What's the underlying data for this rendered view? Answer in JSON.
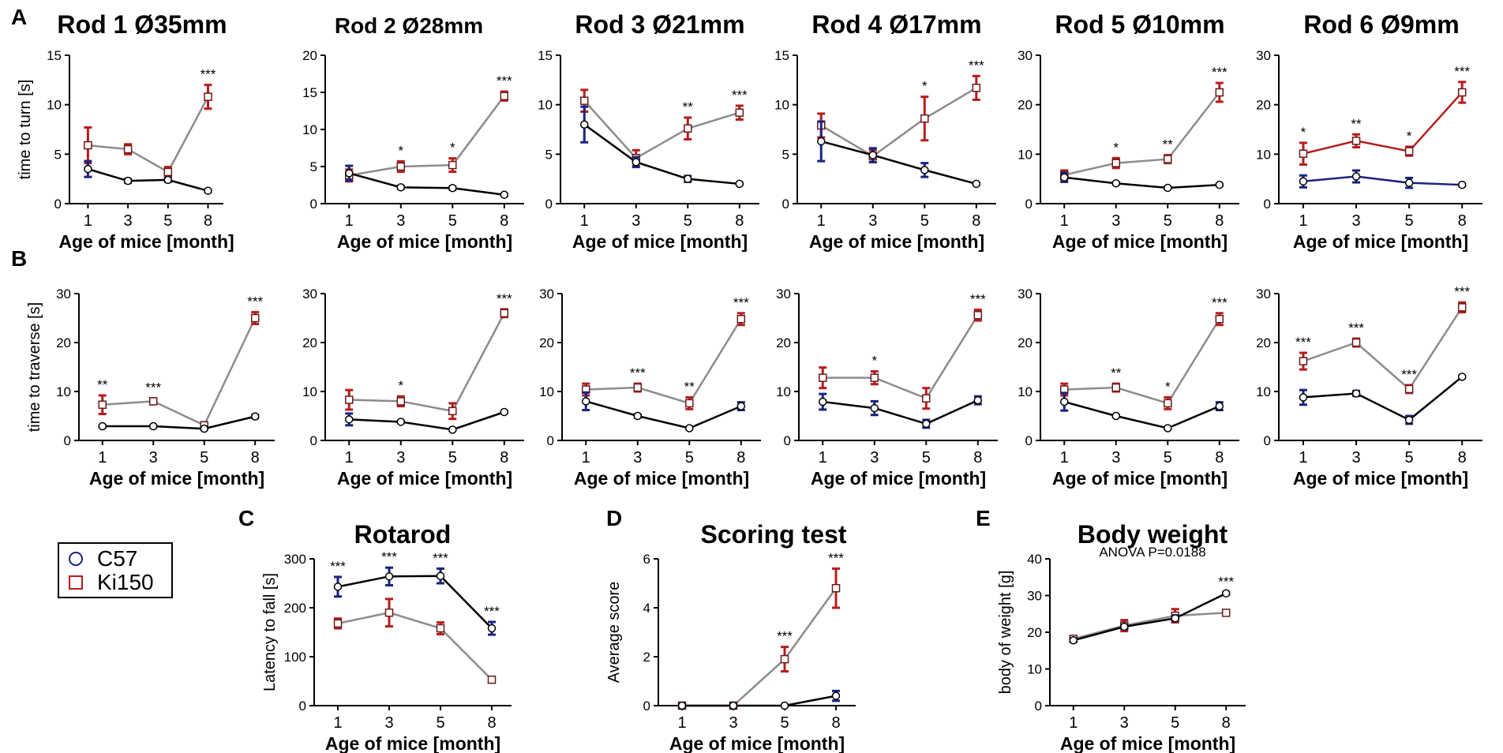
{
  "panel_labels": [
    "A",
    "B",
    "C",
    "D",
    "E"
  ],
  "legend": {
    "items": [
      {
        "label": "C57",
        "color": "#1a237e",
        "marker": "circle"
      },
      {
        "label": "Ki150",
        "color": "#b71c1c",
        "marker": "square"
      }
    ]
  },
  "colors": {
    "c57_line": "#000000",
    "ki150_line": "#8c8c8c",
    "c57_err": "#1a237e",
    "ki150_err": "#b71c1c",
    "rod6_c57_line": "#1a237e",
    "rod6_ki150_line": "#b71c1c"
  },
  "chart_data": [
    {
      "id": "A1",
      "type": "line",
      "title": "Rod 1 Ø35mm",
      "ylabel": "time to turn [s]",
      "xlabel": "Age of mice [month]",
      "categories": [
        "1",
        "3",
        "5",
        "8"
      ],
      "ylim": [
        0,
        15
      ],
      "yticks": [
        0,
        5,
        10,
        15
      ],
      "series": [
        {
          "name": "C57",
          "values": [
            3.5,
            2.3,
            2.4,
            1.3
          ],
          "errors": [
            0.8,
            0.2,
            0.2,
            0.1
          ]
        },
        {
          "name": "Ki150",
          "values": [
            5.9,
            5.5,
            3.2,
            10.8
          ],
          "errors": [
            1.8,
            0.5,
            0.5,
            1.2
          ]
        }
      ],
      "annotations": [
        "",
        "",
        "",
        "***"
      ]
    },
    {
      "id": "A2",
      "type": "line",
      "title": "Rod 2 Ø28mm",
      "ylabel": "",
      "xlabel": "Age of mice [month]",
      "categories": [
        "1",
        "3",
        "5",
        "8"
      ],
      "ylim": [
        0,
        20
      ],
      "yticks": [
        0,
        5,
        10,
        15,
        20
      ],
      "series": [
        {
          "name": "C57",
          "values": [
            4.1,
            2.2,
            2.1,
            1.2
          ],
          "errors": [
            1.0,
            0.2,
            0.2,
            0.1
          ]
        },
        {
          "name": "Ki150",
          "values": [
            3.8,
            5.0,
            5.2,
            14.5
          ],
          "errors": [
            0.8,
            0.7,
            0.9,
            0.6
          ]
        }
      ],
      "annotations": [
        "",
        "*",
        "*",
        "***"
      ]
    },
    {
      "id": "A3",
      "type": "line",
      "title": "Rod 3 Ø21mm",
      "ylabel": "",
      "xlabel": "Age of mice [month]",
      "categories": [
        "1",
        "3",
        "5",
        "8"
      ],
      "ylim": [
        0,
        15
      ],
      "yticks": [
        0,
        5,
        10,
        15
      ],
      "series": [
        {
          "name": "C57",
          "values": [
            8.0,
            4.2,
            2.5,
            2.0
          ],
          "errors": [
            1.8,
            0.5,
            0.3,
            0.1
          ]
        },
        {
          "name": "Ki150",
          "values": [
            10.4,
            4.6,
            7.6,
            9.2
          ],
          "errors": [
            1.1,
            0.8,
            1.1,
            0.7
          ]
        }
      ],
      "annotations": [
        "",
        "",
        "**",
        "***"
      ]
    },
    {
      "id": "A4",
      "type": "line",
      "title": "Rod 4 Ø17mm",
      "ylabel": "",
      "xlabel": "Age of mice [month]",
      "categories": [
        "1",
        "3",
        "5",
        "8"
      ],
      "ylim": [
        0,
        15
      ],
      "yticks": [
        0,
        5,
        10,
        15
      ],
      "series": [
        {
          "name": "C57",
          "values": [
            6.3,
            4.9,
            3.4,
            2.0
          ],
          "errors": [
            2.0,
            0.7,
            0.7,
            0.1
          ]
        },
        {
          "name": "Ki150",
          "values": [
            7.9,
            4.8,
            8.6,
            11.7
          ],
          "errors": [
            1.2,
            0.6,
            2.2,
            1.2
          ]
        }
      ],
      "annotations": [
        "",
        "",
        "*",
        "***"
      ]
    },
    {
      "id": "A5",
      "type": "line",
      "title": "Rod 5 Ø10mm",
      "ylabel": "",
      "xlabel": "Age of mice [month]",
      "categories": [
        "1",
        "3",
        "5",
        "8"
      ],
      "ylim": [
        0,
        30
      ],
      "yticks": [
        0,
        10,
        20,
        30
      ],
      "series": [
        {
          "name": "C57",
          "values": [
            5.3,
            4.1,
            3.2,
            3.8
          ],
          "errors": [
            0.9,
            0.2,
            0.2,
            0.2
          ]
        },
        {
          "name": "Ki150",
          "values": [
            5.8,
            8.2,
            9.0,
            22.5
          ],
          "errors": [
            0.9,
            1.0,
            0.8,
            1.9
          ]
        }
      ],
      "annotations": [
        "",
        "*",
        "**",
        "***"
      ]
    },
    {
      "id": "A6",
      "type": "line",
      "title": "Rod 6 Ø9mm",
      "ylabel": "",
      "xlabel": "Age of mice [month]",
      "categories": [
        "1",
        "3",
        "5",
        "8"
      ],
      "ylim": [
        0,
        30
      ],
      "yticks": [
        0,
        10,
        20,
        30
      ],
      "series": [
        {
          "name": "C57",
          "values": [
            4.5,
            5.5,
            4.2,
            3.8
          ],
          "errors": [
            1.2,
            1.2,
            1.0,
            0.2
          ]
        },
        {
          "name": "Ki150",
          "values": [
            10.1,
            12.7,
            10.6,
            22.5
          ],
          "errors": [
            2.2,
            1.3,
            0.9,
            2.1
          ]
        }
      ],
      "annotations": [
        "*",
        "**",
        "*",
        "***"
      ]
    },
    {
      "id": "B1",
      "type": "line",
      "title": "",
      "ylabel": "time to traverse [s]",
      "xlabel": "Age of mice [month]",
      "categories": [
        "1",
        "3",
        "5",
        "8"
      ],
      "ylim": [
        0,
        30
      ],
      "yticks": [
        0,
        10,
        20,
        30
      ],
      "series": [
        {
          "name": "C57",
          "values": [
            2.9,
            2.9,
            2.4,
            4.9
          ],
          "errors": [
            0.2,
            0.2,
            0.2,
            0.3
          ]
        },
        {
          "name": "Ki150",
          "values": [
            7.3,
            8.0,
            3.1,
            25.0
          ],
          "errors": [
            1.9,
            0.6,
            0.5,
            1.2
          ]
        }
      ],
      "annotations": [
        "**",
        "***",
        "",
        "***"
      ]
    },
    {
      "id": "B2",
      "type": "line",
      "title": "",
      "ylabel": "",
      "xlabel": "Age of mice [month]",
      "categories": [
        "1",
        "3",
        "5",
        "8"
      ],
      "ylim": [
        0,
        30
      ],
      "yticks": [
        0,
        10,
        20,
        30
      ],
      "series": [
        {
          "name": "C57",
          "values": [
            4.3,
            3.8,
            2.2,
            5.8
          ],
          "errors": [
            1.2,
            0.2,
            0.2,
            0.2
          ]
        },
        {
          "name": "Ki150",
          "values": [
            8.3,
            8.0,
            6.0,
            26.0
          ],
          "errors": [
            2.0,
            1.0,
            1.6,
            0.8
          ]
        }
      ],
      "annotations": [
        "",
        "*",
        "",
        "***"
      ]
    },
    {
      "id": "B3",
      "type": "line",
      "title": "",
      "ylabel": "",
      "xlabel": "Age of mice [month]",
      "categories": [
        "1",
        "3",
        "5",
        "8"
      ],
      "ylim": [
        0,
        30
      ],
      "yticks": [
        0,
        10,
        20,
        30
      ],
      "series": [
        {
          "name": "C57",
          "values": [
            8.0,
            5.0,
            2.5,
            7.0
          ],
          "errors": [
            1.8,
            0.3,
            0.2,
            0.8
          ]
        },
        {
          "name": "Ki150",
          "values": [
            10.4,
            10.8,
            7.6,
            24.8
          ],
          "errors": [
            1.2,
            0.8,
            1.2,
            1.2
          ]
        }
      ],
      "annotations": [
        "",
        "***",
        "**",
        "***"
      ]
    },
    {
      "id": "B4",
      "type": "line",
      "title": "",
      "ylabel": "",
      "xlabel": "Age of mice [month]",
      "categories": [
        "1",
        "3",
        "5",
        "8"
      ],
      "ylim": [
        0,
        30
      ],
      "yticks": [
        0,
        10,
        20,
        30
      ],
      "series": [
        {
          "name": "C57",
          "values": [
            7.9,
            6.6,
            3.4,
            8.2
          ],
          "errors": [
            1.6,
            1.4,
            0.8,
            0.8
          ]
        },
        {
          "name": "Ki150",
          "values": [
            12.8,
            12.8,
            8.6,
            25.6
          ],
          "errors": [
            2.1,
            1.3,
            2.1,
            1.1
          ]
        }
      ],
      "annotations": [
        "",
        "*",
        "",
        "***"
      ]
    },
    {
      "id": "B5",
      "type": "line",
      "title": "",
      "ylabel": "",
      "xlabel": "Age of mice [month]",
      "categories": [
        "1",
        "3",
        "5",
        "8"
      ],
      "ylim": [
        0,
        30
      ],
      "yticks": [
        0,
        10,
        20,
        30
      ],
      "series": [
        {
          "name": "C57",
          "values": [
            7.9,
            5.0,
            2.5,
            7.0
          ],
          "errors": [
            1.8,
            0.2,
            0.2,
            0.8
          ]
        },
        {
          "name": "Ki150",
          "values": [
            10.4,
            10.8,
            7.6,
            24.8
          ],
          "errors": [
            1.2,
            0.8,
            1.2,
            1.2
          ]
        }
      ],
      "annotations": [
        "",
        "**",
        "*",
        "***"
      ]
    },
    {
      "id": "B6",
      "type": "line",
      "title": "",
      "ylabel": "",
      "xlabel": "Age of mice [month]",
      "categories": [
        "1",
        "3",
        "5",
        "8"
      ],
      "ylim": [
        0,
        30
      ],
      "yticks": [
        0,
        10,
        20,
        30
      ],
      "series": [
        {
          "name": "C57",
          "values": [
            8.8,
            9.6,
            4.2,
            13.0
          ],
          "errors": [
            1.5,
            0.5,
            0.8,
            0.2
          ]
        },
        {
          "name": "Ki150",
          "values": [
            16.2,
            20.0,
            10.5,
            27.2
          ],
          "errors": [
            1.7,
            0.8,
            0.8,
            1.0
          ]
        }
      ],
      "annotations": [
        "***",
        "***",
        "***",
        "***"
      ]
    },
    {
      "id": "C",
      "type": "line",
      "title": "Rotarod",
      "subtitle": "",
      "ylabel": "Latency to fall [s]",
      "xlabel": "Age of mice [month]",
      "categories": [
        "1",
        "3",
        "5",
        "8"
      ],
      "ylim": [
        0,
        300
      ],
      "yticks": [
        0,
        100,
        200,
        300
      ],
      "series": [
        {
          "name": "C57",
          "values": [
            243,
            264,
            265,
            158
          ],
          "errors": [
            20,
            18,
            15,
            13
          ]
        },
        {
          "name": "Ki150",
          "values": [
            168,
            190,
            158,
            53
          ],
          "errors": [
            10,
            28,
            12,
            5
          ]
        }
      ],
      "annotations": [
        "***",
        "***",
        "***",
        "***"
      ]
    },
    {
      "id": "D",
      "type": "line",
      "title": "Scoring test",
      "subtitle": "",
      "ylabel": "Average score",
      "xlabel": "Age of mice [month]",
      "categories": [
        "1",
        "3",
        "5",
        "8"
      ],
      "ylim": [
        0,
        6
      ],
      "yticks": [
        0,
        2,
        4,
        6
      ],
      "series": [
        {
          "name": "C57",
          "values": [
            0,
            0,
            0,
            0.4
          ],
          "errors": [
            0,
            0,
            0,
            0.2
          ]
        },
        {
          "name": "Ki150",
          "values": [
            0,
            0,
            1.9,
            4.8
          ],
          "errors": [
            0,
            0,
            0.5,
            0.8
          ]
        }
      ],
      "annotations": [
        "",
        "",
        "***",
        "***"
      ]
    },
    {
      "id": "E",
      "type": "line",
      "title": "Body weight",
      "subtitle": "ANOVA P=0.0188",
      "ylabel": "body of weight [g]",
      "xlabel": "Age of mice [month]",
      "categories": [
        "1",
        "3",
        "5",
        "8"
      ],
      "ylim": [
        0,
        40
      ],
      "yticks": [
        0,
        10,
        20,
        30,
        40
      ],
      "series": [
        {
          "name": "C57",
          "values": [
            17.8,
            21.5,
            23.8,
            30.6
          ],
          "errors": [
            0.4,
            0.6,
            0.8,
            0.3
          ]
        },
        {
          "name": "Ki150",
          "values": [
            18.2,
            21.8,
            24.5,
            25.3
          ],
          "errors": [
            0.4,
            1.5,
            1.8,
            0.5
          ]
        }
      ],
      "annotations": [
        "",
        "",
        "",
        "***"
      ]
    }
  ]
}
